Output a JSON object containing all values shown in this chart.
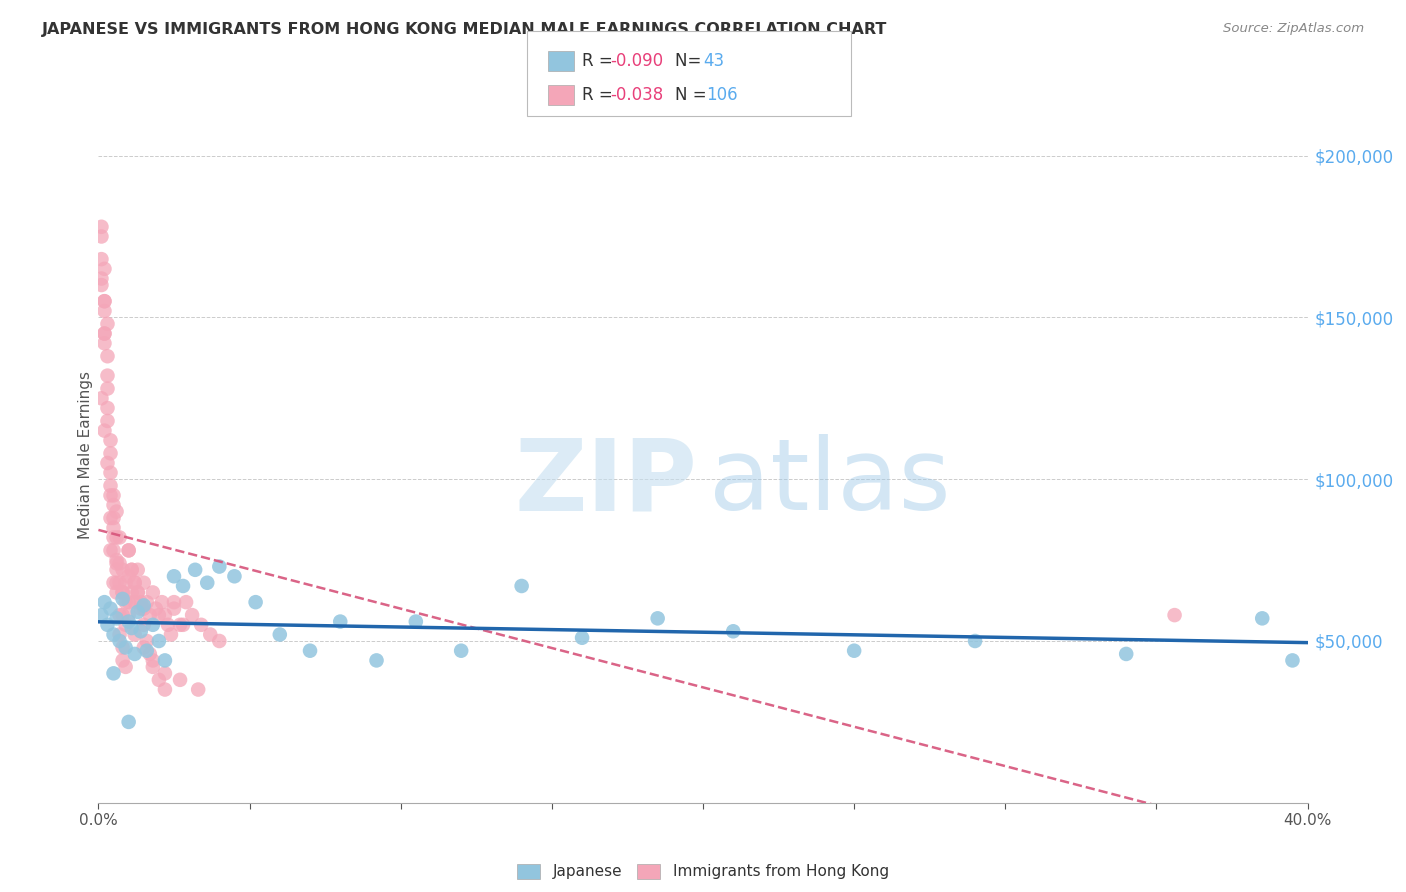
{
  "title": "JAPANESE VS IMMIGRANTS FROM HONG KONG MEDIAN MALE EARNINGS CORRELATION CHART",
  "source": "Source: ZipAtlas.com",
  "ylabel": "Median Male Earnings",
  "y_ticks": [
    0,
    50000,
    100000,
    150000,
    200000
  ],
  "y_tick_labels": [
    "",
    "$50,000",
    "$100,000",
    "$150,000",
    "$200,000"
  ],
  "xmin": 0.0,
  "xmax": 0.4,
  "ymin": 0,
  "ymax": 215000,
  "blue_color": "#92c5de",
  "blue_line_color": "#2166ac",
  "pink_color": "#f4a6b8",
  "pink_line_color": "#d6537a",
  "background_color": "#ffffff",
  "grid_color": "#cccccc",
  "japanese_x": [
    0.001,
    0.002,
    0.003,
    0.004,
    0.005,
    0.006,
    0.007,
    0.008,
    0.009,
    0.01,
    0.011,
    0.012,
    0.013,
    0.014,
    0.015,
    0.016,
    0.018,
    0.02,
    0.022,
    0.025,
    0.028,
    0.032,
    0.036,
    0.04,
    0.045,
    0.052,
    0.06,
    0.07,
    0.08,
    0.092,
    0.105,
    0.12,
    0.14,
    0.16,
    0.185,
    0.21,
    0.25,
    0.29,
    0.34,
    0.385,
    0.395,
    0.005,
    0.01
  ],
  "japanese_y": [
    58000,
    62000,
    55000,
    60000,
    52000,
    57000,
    50000,
    63000,
    48000,
    56000,
    54000,
    46000,
    59000,
    53000,
    61000,
    47000,
    55000,
    50000,
    44000,
    70000,
    67000,
    72000,
    68000,
    73000,
    70000,
    62000,
    52000,
    47000,
    56000,
    44000,
    56000,
    47000,
    67000,
    51000,
    57000,
    53000,
    47000,
    50000,
    46000,
    57000,
    44000,
    40000,
    25000
  ],
  "hk_x": [
    0.001,
    0.001,
    0.001,
    0.002,
    0.002,
    0.002,
    0.002,
    0.003,
    0.003,
    0.003,
    0.003,
    0.004,
    0.004,
    0.004,
    0.004,
    0.005,
    0.005,
    0.005,
    0.005,
    0.006,
    0.006,
    0.006,
    0.006,
    0.007,
    0.007,
    0.007,
    0.008,
    0.008,
    0.008,
    0.009,
    0.009,
    0.009,
    0.01,
    0.01,
    0.01,
    0.011,
    0.011,
    0.012,
    0.012,
    0.013,
    0.013,
    0.014,
    0.015,
    0.015,
    0.016,
    0.017,
    0.018,
    0.019,
    0.02,
    0.021,
    0.022,
    0.023,
    0.024,
    0.025,
    0.027,
    0.029,
    0.031,
    0.034,
    0.037,
    0.04,
    0.001,
    0.001,
    0.002,
    0.002,
    0.003,
    0.003,
    0.004,
    0.004,
    0.005,
    0.005,
    0.006,
    0.006,
    0.007,
    0.007,
    0.008,
    0.008,
    0.009,
    0.01,
    0.011,
    0.012,
    0.013,
    0.014,
    0.015,
    0.016,
    0.017,
    0.018,
    0.02,
    0.022,
    0.025,
    0.028,
    0.001,
    0.002,
    0.003,
    0.004,
    0.005,
    0.006,
    0.008,
    0.01,
    0.012,
    0.015,
    0.018,
    0.022,
    0.027,
    0.033,
    0.002,
    0.356
  ],
  "hk_y": [
    175000,
    168000,
    160000,
    155000,
    145000,
    165000,
    152000,
    148000,
    138000,
    128000,
    118000,
    108000,
    98000,
    88000,
    78000,
    88000,
    78000,
    68000,
    95000,
    90000,
    82000,
    74000,
    68000,
    82000,
    74000,
    68000,
    72000,
    65000,
    58000,
    68000,
    62000,
    55000,
    78000,
    70000,
    62000,
    72000,
    65000,
    68000,
    62000,
    72000,
    65000,
    62000,
    68000,
    60000,
    62000,
    58000,
    65000,
    60000,
    58000,
    62000,
    58000,
    55000,
    52000,
    60000,
    55000,
    62000,
    58000,
    55000,
    52000,
    50000,
    178000,
    162000,
    155000,
    145000,
    132000,
    122000,
    112000,
    102000,
    92000,
    82000,
    72000,
    65000,
    58000,
    52000,
    48000,
    44000,
    42000,
    78000,
    72000,
    68000,
    65000,
    60000,
    55000,
    50000,
    46000,
    42000,
    38000,
    35000,
    62000,
    55000,
    125000,
    115000,
    105000,
    95000,
    85000,
    75000,
    65000,
    58000,
    52000,
    48000,
    44000,
    40000,
    38000,
    35000,
    142000,
    58000
  ]
}
